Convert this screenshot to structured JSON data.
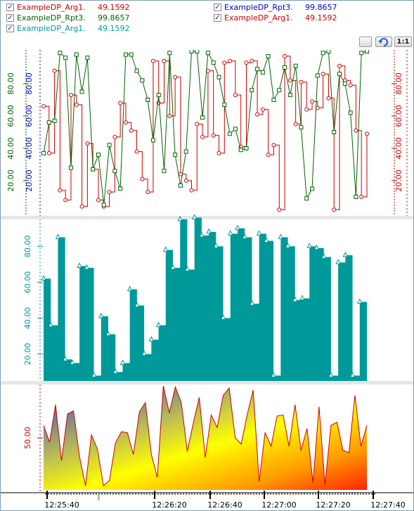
{
  "legend": [
    {
      "name": "ExampleDP_Arg1.",
      "value": "49.1592",
      "color": "#cc0000",
      "checked": true
    },
    {
      "name": "ExampleDP_Rpt3.",
      "value": "99.8657",
      "color": "#006400",
      "checked": true
    },
    {
      "name": "ExampleDP_Arg1.",
      "value": "49.1592",
      "color": "#009999",
      "checked": true
    },
    {
      "name": "ExampleDP_Rpt3.",
      "value": "99.8657",
      "color": "#0000cc",
      "checked": true
    },
    {
      "name": "ExampleDP_Arg1.",
      "value": "49.1592",
      "color": "#cc0000",
      "checked": true
    }
  ],
  "toolbar": {
    "reset_icon": "undo-zoom-icon",
    "one_to_one_label": "1:1"
  },
  "colors": {
    "red": "#cc0000",
    "green": "#006400",
    "teal": "#009999",
    "blue": "#0000cc"
  },
  "chart_data": [
    {
      "type": "line",
      "title": "",
      "x_type": "time",
      "x": [
        "12:25:41",
        "12:25:43",
        "12:25:45",
        "12:25:47",
        "12:25:49",
        "12:25:51",
        "12:25:53",
        "12:25:55",
        "12:25:57",
        "12:25:59",
        "12:26:01",
        "12:26:03",
        "12:26:05",
        "12:26:07",
        "12:26:09",
        "12:26:11",
        "12:26:13",
        "12:26:15",
        "12:26:17",
        "12:26:19",
        "12:26:21",
        "12:26:23",
        "12:26:25",
        "12:26:27",
        "12:26:29",
        "12:26:31",
        "12:26:33",
        "12:26:35",
        "12:26:37",
        "12:26:39",
        "12:26:41",
        "12:26:43",
        "12:26:45",
        "12:26:47",
        "12:26:49",
        "12:26:51",
        "12:26:53",
        "12:26:55",
        "12:26:57",
        "12:26:59",
        "12:27:01",
        "12:27:03",
        "12:27:05",
        "12:27:07",
        "12:27:09",
        "12:27:11",
        "12:27:13",
        "12:27:15",
        "12:27:17",
        "12:27:19",
        "12:27:21",
        "12:27:23",
        "12:27:25",
        "12:27:27",
        "12:27:29",
        "12:27:31",
        "12:27:33",
        "12:27:35",
        "12:27:37",
        "12:27:39"
      ],
      "series": [
        {
          "name": "ExampleDP_Arg1.",
          "color": "#cc0000",
          "step": true,
          "axis": "right",
          "values": [
            66,
            37,
            88,
            14,
            8,
            73,
            67,
            4,
            43,
            27,
            8,
            4,
            13,
            47,
            68,
            56,
            51,
            38,
            21,
            13,
            94,
            68,
            94,
            60,
            84,
            24,
            20,
            14,
            55,
            47,
            88,
            48,
            37,
            93,
            94,
            73,
            41,
            93,
            94,
            61,
            64,
            36,
            42,
            2,
            97,
            82,
            55,
            81,
            64,
            69,
            65,
            86,
            71,
            2,
            91,
            82,
            79,
            51,
            10,
            49
          ],
          "marker": "circle"
        },
        {
          "name": "ExampleDP_Rpt3.",
          "color": "#006400",
          "step": false,
          "axis": "left",
          "values": [
            37,
            56,
            57,
            99,
            96,
            28,
            98,
            75,
            96,
            27,
            36,
            5,
            42,
            26,
            15,
            98,
            98,
            88,
            82,
            70,
            45,
            73,
            26,
            99,
            36,
            17,
            38,
            100,
            100,
            59,
            99,
            93,
            84,
            67,
            49,
            52,
            39,
            40,
            76,
            89,
            87,
            97,
            70,
            76,
            90,
            73,
            91,
            53,
            9,
            15,
            85,
            99,
            100,
            50,
            86,
            80,
            62,
            10,
            99,
            100
          ],
          "marker": "square"
        }
      ],
      "left_axis": {
        "ticks": [
          "20.00",
          "40.00",
          "60.00",
          "80.00"
        ],
        "ylim": [
          0,
          100
        ]
      },
      "right_axis": {
        "ticks": [
          "20.00",
          "40.00",
          "60.00",
          "80.00"
        ],
        "ylim": [
          0,
          100
        ]
      }
    },
    {
      "type": "area",
      "title": "",
      "series": [
        {
          "name": "ExampleDP_Arg1.",
          "color": "#009999",
          "step": true,
          "values": [
            62,
            36,
            85,
            17,
            15,
            69,
            68,
            8,
            41,
            31,
            10,
            15,
            56,
            47,
            20,
            28,
            36,
            78,
            68,
            95,
            67,
            96,
            86,
            88,
            80,
            40,
            87,
            90,
            85,
            48,
            87,
            83,
            8,
            85,
            80,
            50,
            51,
            80,
            79,
            74,
            8,
            71,
            75,
            8,
            49
          ]
        }
      ],
      "y_ticks": [
        "20.00",
        "40.00",
        "60.00",
        "80.00"
      ],
      "ylim": [
        5,
        95
      ]
    },
    {
      "type": "area",
      "title": "",
      "series": [
        {
          "name": "ExampleDP_Arg1.",
          "color": "#cc0000",
          "values": [
            62,
            46,
            82,
            28,
            73,
            76,
            32,
            4,
            53,
            39,
            4,
            9,
            45,
            56,
            55,
            34,
            75,
            84,
            34,
            12,
            100,
            74,
            99,
            84,
            37,
            64,
            89,
            31,
            72,
            60,
            91,
            98,
            50,
            44,
            72,
            96,
            8,
            55,
            42,
            71,
            72,
            42,
            82,
            38,
            59,
            7,
            80,
            5,
            62,
            65,
            38,
            36,
            91,
            42,
            62
          ]
        }
      ],
      "y_ticks": [
        "50.00"
      ],
      "ylim": [
        0,
        100
      ]
    }
  ],
  "x_axis": {
    "ticks": [
      "12:25:40",
      "12:26:20",
      "12:26:40",
      "12:27:00",
      "12:27:20",
      "12:27:40"
    ]
  }
}
